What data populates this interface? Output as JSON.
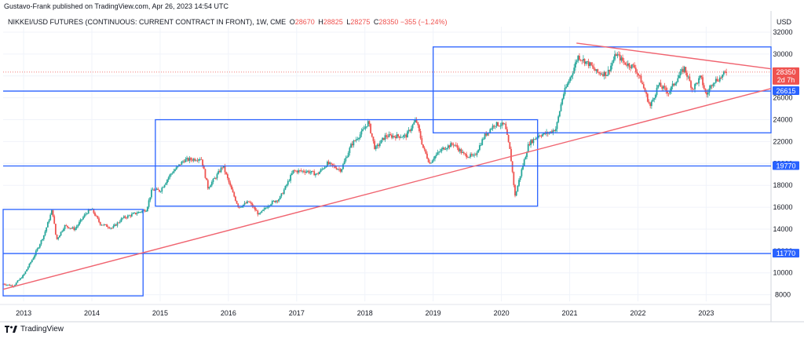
{
  "header": {
    "publisher_line": "Gustavo-Frank published on TradingView.com, Apr 26, 2023 14:54 UTC"
  },
  "legend": {
    "symbol": "NIKKEI/USD FUTURES (CONTINUOUS: CURRENT CONTRACT IN FRONT), 1W, CME",
    "open_label": "O",
    "open": "28670",
    "high_label": "H",
    "high": "28825",
    "low_label": "L",
    "low": "28275",
    "close_label": "C",
    "close": "28350",
    "change": "−355 (−1.24%)"
  },
  "footer": {
    "brand": "TradingView"
  },
  "colors": {
    "up": "#26a69a",
    "down": "#ef5350",
    "box": "#2962ff",
    "trend": "#f06470",
    "axis_text": "#131722",
    "grid": "#f0f3fa"
  },
  "chart_data": {
    "type": "candlestick",
    "currency": "USD",
    "x_tick_labels": [
      "2013",
      "2014",
      "2015",
      "2016",
      "2017",
      "2018",
      "2019",
      "2020",
      "2021",
      "2022",
      "2023"
    ],
    "y_tick_labels": [
      "8000",
      "10000",
      "12000",
      "14000",
      "16000",
      "18000",
      "20000",
      "22000",
      "24000",
      "26000",
      "28000",
      "30000",
      "32000"
    ],
    "ylim": [
      7400,
      32500
    ],
    "xlim": [
      2012.7,
      2023.95
    ],
    "price_labels": [
      {
        "value": 28350,
        "text": "28350",
        "sub": "2d 7h",
        "color": "#ef5350"
      },
      {
        "value": 26615,
        "text": "26615",
        "color": "#2962ff"
      },
      {
        "value": 19770,
        "text": "19770",
        "color": "#2962ff"
      },
      {
        "value": 11770,
        "text": "11770",
        "color": "#2962ff"
      }
    ],
    "horizontal_levels": [
      11770,
      19770,
      26615
    ],
    "boxes": [
      {
        "x1": 2012.7,
        "x2": 2014.75,
        "y1": 7900,
        "y2": 15800
      },
      {
        "x1": 2014.93,
        "x2": 2020.53,
        "y1": 16100,
        "y2": 24000
      },
      {
        "x1": 2019.0,
        "x2": 2023.95,
        "y1": 22800,
        "y2": 30650
      }
    ],
    "trendlines": [
      {
        "from": [
          2012.7,
          8500
        ],
        "to": [
          2023.95,
          26850
        ]
      },
      {
        "from": [
          2021.1,
          31000
        ],
        "to": [
          2023.95,
          28650
        ]
      }
    ],
    "anchors": [
      [
        2012.7,
        9000
      ],
      [
        2012.85,
        8800
      ],
      [
        2013.0,
        9800
      ],
      [
        2013.15,
        11500
      ],
      [
        2013.3,
        13500
      ],
      [
        2013.42,
        15800
      ],
      [
        2013.48,
        13000
      ],
      [
        2013.6,
        14300
      ],
      [
        2013.75,
        14000
      ],
      [
        2013.92,
        15500
      ],
      [
        2014.0,
        15800
      ],
      [
        2014.12,
        14500
      ],
      [
        2014.3,
        14100
      ],
      [
        2014.45,
        15000
      ],
      [
        2014.58,
        15300
      ],
      [
        2014.8,
        15800
      ],
      [
        2014.88,
        17600
      ],
      [
        2015.0,
        17500
      ],
      [
        2015.15,
        19000
      ],
      [
        2015.35,
        20300
      ],
      [
        2015.5,
        20400
      ],
      [
        2015.6,
        20500
      ],
      [
        2015.7,
        17800
      ],
      [
        2015.82,
        18800
      ],
      [
        2015.92,
        19800
      ],
      [
        2016.05,
        17500
      ],
      [
        2016.15,
        16000
      ],
      [
        2016.3,
        16500
      ],
      [
        2016.45,
        15300
      ],
      [
        2016.6,
        16300
      ],
      [
        2016.75,
        16800
      ],
      [
        2016.85,
        18000
      ],
      [
        2016.95,
        19300
      ],
      [
        2017.15,
        19300
      ],
      [
        2017.3,
        19000
      ],
      [
        2017.45,
        20000
      ],
      [
        2017.65,
        19400
      ],
      [
        2017.8,
        21700
      ],
      [
        2017.95,
        22800
      ],
      [
        2018.05,
        23800
      ],
      [
        2018.15,
        21300
      ],
      [
        2018.3,
        22500
      ],
      [
        2018.45,
        22500
      ],
      [
        2018.6,
        22500
      ],
      [
        2018.75,
        24000
      ],
      [
        2018.85,
        21500
      ],
      [
        2018.95,
        20000
      ],
      [
        2019.0,
        20500
      ],
      [
        2019.15,
        21400
      ],
      [
        2019.3,
        21800
      ],
      [
        2019.45,
        20800
      ],
      [
        2019.6,
        20600
      ],
      [
        2019.75,
        22500
      ],
      [
        2019.9,
        23600
      ],
      [
        2020.05,
        23500
      ],
      [
        2020.13,
        21000
      ],
      [
        2020.2,
        17000
      ],
      [
        2020.3,
        19500
      ],
      [
        2020.4,
        21800
      ],
      [
        2020.55,
        22600
      ],
      [
        2020.7,
        22800
      ],
      [
        2020.8,
        23200
      ],
      [
        2020.9,
        26200
      ],
      [
        2021.05,
        28500
      ],
      [
        2021.12,
        29800
      ],
      [
        2021.3,
        29000
      ],
      [
        2021.4,
        28300
      ],
      [
        2021.55,
        28200
      ],
      [
        2021.68,
        30000
      ],
      [
        2021.8,
        29200
      ],
      [
        2021.95,
        28800
      ],
      [
        2022.05,
        27500
      ],
      [
        2022.18,
        25200
      ],
      [
        2022.3,
        27200
      ],
      [
        2022.45,
        26500
      ],
      [
        2022.6,
        28000
      ],
      [
        2022.68,
        28700
      ],
      [
        2022.8,
        26800
      ],
      [
        2022.92,
        27900
      ],
      [
        2023.0,
        26200
      ],
      [
        2023.1,
        27500
      ],
      [
        2023.2,
        27800
      ],
      [
        2023.3,
        28400
      ]
    ]
  }
}
